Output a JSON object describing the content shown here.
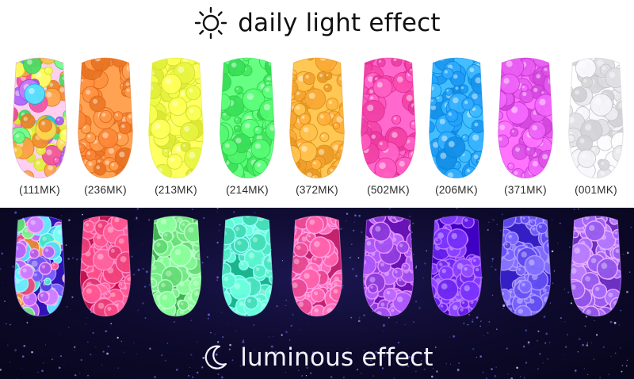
{
  "header": {
    "title": "daily light effect",
    "icon": "sun-icon"
  },
  "footer": {
    "title": "luminous effect",
    "icon": "moon-icon"
  },
  "samples": [
    {
      "code": "(111MK)",
      "day_color": "#f2b6d8",
      "glow_color": "#6b4ff0",
      "mixed": true
    },
    {
      "code": "(236MK)",
      "day_color": "#ff8a3a",
      "glow_color": "#ff4f8a"
    },
    {
      "code": "(213MK)",
      "day_color": "#f2ff4a",
      "glow_color": "#7bf28b"
    },
    {
      "code": "(214MK)",
      "day_color": "#4df26a",
      "glow_color": "#56f0c9"
    },
    {
      "code": "(372MK)",
      "day_color": "#ffae3a",
      "glow_color": "#ff5fa8"
    },
    {
      "code": "(502MK)",
      "day_color": "#ff4fb4",
      "glow_color": "#a34ff2"
    },
    {
      "code": "(206MK)",
      "day_color": "#2aa6ff",
      "glow_color": "#7b34ff"
    },
    {
      "code": "(371MK)",
      "day_color": "#e65af0",
      "glow_color": "#6f5bff"
    },
    {
      "code": "(001MK)",
      "day_color": "#e8e8ec",
      "glow_color": "#a86cff"
    }
  ]
}
